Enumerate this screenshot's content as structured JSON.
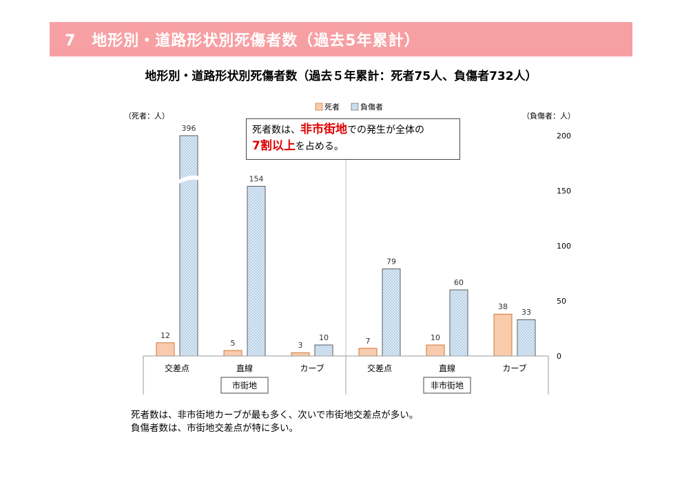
{
  "header": {
    "title": "7　地形別・道路形状別死傷者数（過去5年累計）"
  },
  "chart_title": "地形別・道路形状別死傷者数（過去５年累計：死者75人、負傷者732人）",
  "callout": {
    "part1": "死者数は、",
    "highlight1": "非市街地",
    "part2": "での発生が全体の",
    "highlight2": "7割以上",
    "part3": "を占める。"
  },
  "notes": [
    "死者数は、非市街地カーブが最も多く、次いで市街地交差点が多い。",
    "負傷者数は、市街地交差点が特に多い。"
  ],
  "colors": {
    "header": "#f7a0a3",
    "deaths": "#f8cbad",
    "injured": "#deebf7",
    "highlight": "#e00000"
  },
  "chart_data": {
    "type": "bar",
    "left_axis_unit": "（死者：人）",
    "right_axis_unit": "（負傷者：人）",
    "ylim": [
      0,
      200
    ],
    "yticks": [
      0,
      50,
      100,
      150,
      200
    ],
    "groups": [
      "市街地",
      "非市街地"
    ],
    "categories": [
      "交差点",
      "直線",
      "カーブ",
      "交差点",
      "直線",
      "カーブ"
    ],
    "series": [
      {
        "name": "死者",
        "values": [
          12,
          5,
          3,
          7,
          10,
          38
        ]
      },
      {
        "name": "負傷者",
        "values": [
          396,
          154,
          10,
          79,
          60,
          33
        ]
      }
    ],
    "axis_break": "負傷者 396 (exceeds 200 axis limit)",
    "legend_position": "top-center",
    "grid": false
  }
}
